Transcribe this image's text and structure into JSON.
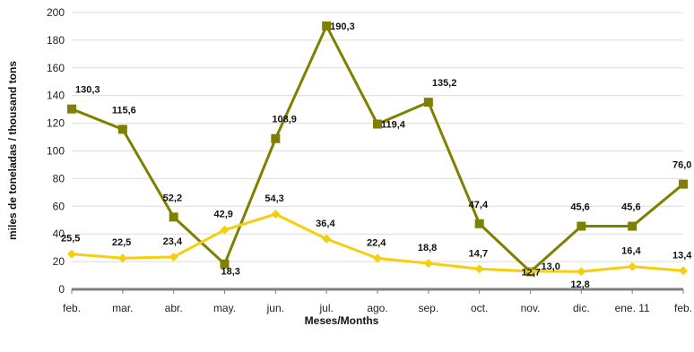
{
  "chart_data": {
    "type": "line",
    "title": "",
    "xlabel": "Meses/Months",
    "ylabel": "miles de toneladas / thousand tons",
    "ylim": [
      0,
      200
    ],
    "yticks": [
      0,
      20,
      40,
      60,
      80,
      100,
      120,
      140,
      160,
      180,
      200
    ],
    "categories": [
      "feb.",
      "mar.",
      "abr.",
      "may.",
      "jun.",
      "jul.",
      "ago.",
      "sep.",
      "oct.",
      "nov.",
      "dic.",
      "ene. 11",
      "feb."
    ],
    "grid": "horizontal",
    "legend": "none",
    "series": [
      {
        "color": "#7f7f00",
        "marker": "square",
        "values": [
          130.3,
          115.6,
          52.2,
          18.3,
          108.9,
          190.3,
          119.4,
          135.2,
          47.4,
          12.7,
          45.6,
          45.6,
          76.0
        ],
        "labels": [
          "130,3",
          "115,6",
          "52,2",
          "18,3",
          "108,9",
          "190,3",
          "119,4",
          "135,2",
          "47,4",
          "12,7",
          "45,6",
          "45,6",
          "76,0"
        ]
      },
      {
        "color": "#f5cf0d",
        "marker": "diamond",
        "values": [
          25.5,
          22.5,
          23.4,
          42.9,
          54.3,
          36.4,
          22.4,
          18.8,
          14.7,
          13.0,
          12.8,
          16.4,
          13.4
        ],
        "labels": [
          "25,5",
          "22,5",
          "23,4",
          "42,9",
          "54,3",
          "36,4",
          "22,4",
          "18,8",
          "14,7",
          "13,0",
          "12,8",
          "16,4",
          "13,4"
        ]
      }
    ]
  }
}
